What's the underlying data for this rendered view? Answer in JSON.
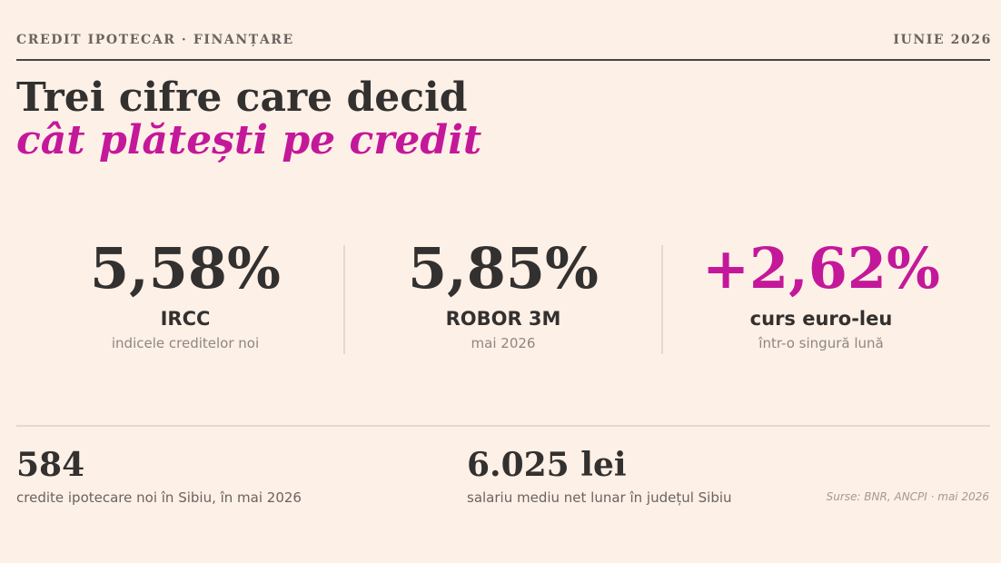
{
  "header": {
    "kicker": "CREDIT IPOTECAR · FINANȚARE",
    "date": "IUNIE 2026"
  },
  "headline": {
    "line1": "Trei cifre care decid",
    "line2": "cât plătești pe credit"
  },
  "stats": [
    {
      "value": "5,58%",
      "label": "IRCC",
      "sub": "indicele creditelor noi"
    },
    {
      "value": "5,85%",
      "label": "ROBOR 3M",
      "sub": "mai 2026"
    },
    {
      "value": "+2,62%",
      "label": "curs euro-leu",
      "sub": "într-o singură lună"
    }
  ],
  "facts": [
    {
      "value": "584",
      "desc": "credite ipotecare noi în Sibiu, în mai 2026"
    },
    {
      "value": "6.025 lei",
      "desc": "salariu mediu net lunar în județul Sibiu"
    }
  ],
  "source": "Surse: BNR, ANCPI · mai 2026",
  "colors": {
    "background": "#fdf0e6",
    "text": "#333030",
    "accent": "#c4189a",
    "muted": "#8f8682"
  }
}
